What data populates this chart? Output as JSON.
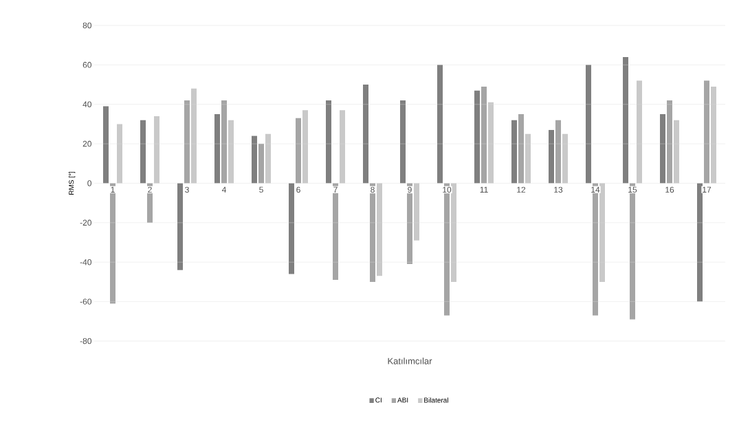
{
  "chart_data": {
    "type": "bar",
    "xlabel": "Katılımcılar",
    "ylabel": "RMS [°]",
    "categories": [
      "1",
      "2",
      "3",
      "4",
      "5",
      "6",
      "7",
      "8",
      "9",
      "10",
      "11",
      "12",
      "13",
      "14",
      "15",
      "16",
      "17"
    ],
    "series": [
      {
        "name": "CI",
        "color": "#7f7f7f",
        "values": [
          39,
          32,
          -44,
          35,
          24,
          -46,
          42,
          50,
          42,
          60,
          47,
          32,
          27,
          60,
          64,
          35,
          -60
        ]
      },
      {
        "name": "ABI",
        "color": "#a5a5a5",
        "values": [
          -61,
          -20,
          42,
          42,
          20,
          33,
          -49,
          -50,
          -41,
          -67,
          49,
          35,
          32,
          -67,
          -69,
          42,
          52
        ]
      },
      {
        "name": "Bilateral",
        "color": "#c9c9c9",
        "values": [
          30,
          34,
          48,
          32,
          25,
          37,
          37,
          -47,
          -29,
          -50,
          41,
          25,
          25,
          -50,
          52,
          32,
          49
        ]
      }
    ],
    "ylim": [
      -80,
      80
    ],
    "yticks": [
      -80,
      -60,
      -40,
      -20,
      0,
      20,
      40,
      60,
      80
    ],
    "grid": "y",
    "legend": "bottom"
  }
}
